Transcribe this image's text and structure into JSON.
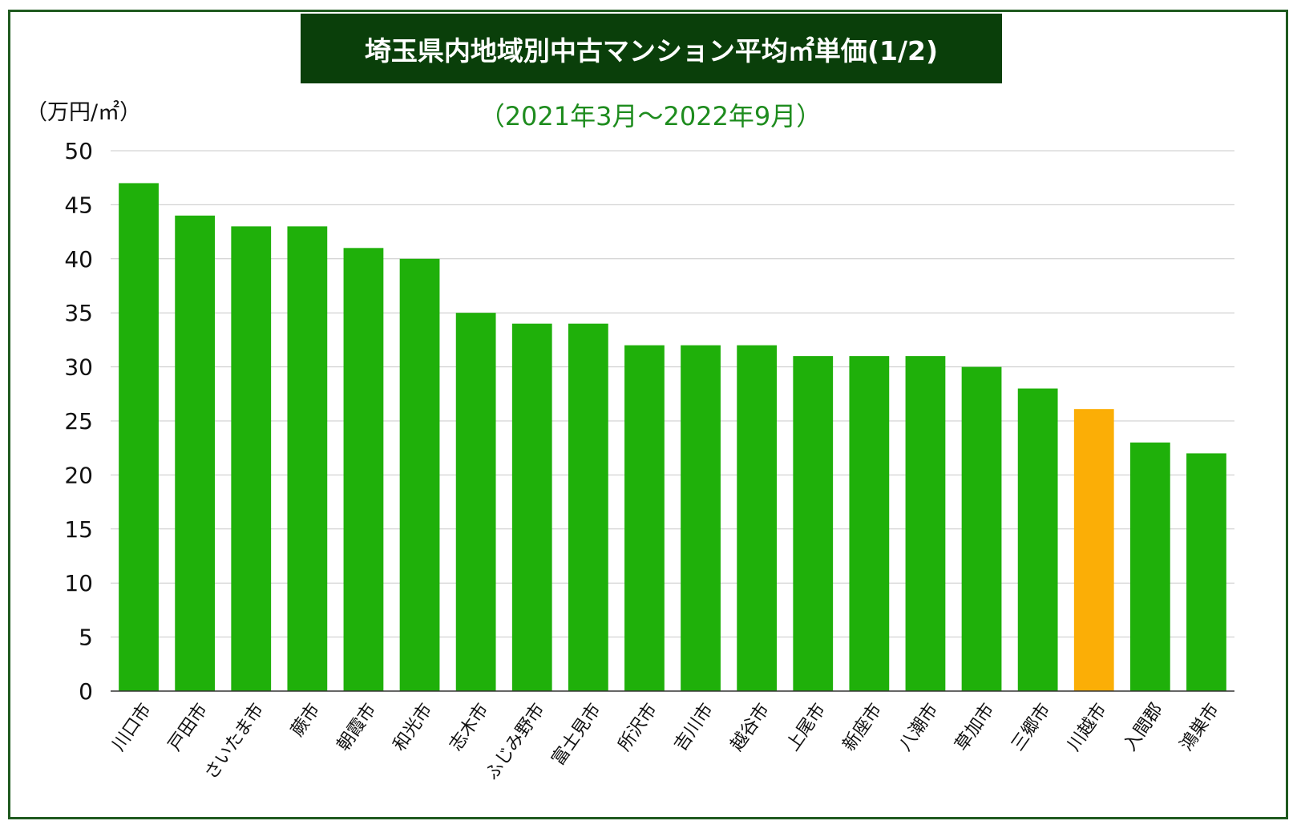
{
  "chart_data": {
    "type": "bar",
    "title": "埼玉県内地域別中古マンション平均㎡単価(1/2)",
    "subtitle": "（2021年3月～2022年9月）",
    "ylabel": "（万円/㎡）",
    "xlabel": "",
    "ylim": [
      0,
      50
    ],
    "yticks": [
      0,
      5,
      10,
      15,
      20,
      25,
      30,
      35,
      40,
      45,
      50
    ],
    "grid": true,
    "categories": [
      "川口市",
      "戸田市",
      "さいたま市",
      "蕨市",
      "朝霞市",
      "和光市",
      "志木市",
      "ふじみ野市",
      "富士見市",
      "所沢市",
      "吉川市",
      "越谷市",
      "上尾市",
      "新座市",
      "八潮市",
      "草加市",
      "三郷市",
      "川越市",
      "入間郡",
      "鴻巣市"
    ],
    "values": [
      47,
      44,
      43,
      43,
      41,
      40,
      35,
      34,
      34,
      32,
      32,
      32,
      31,
      31,
      31,
      30,
      28,
      26.1,
      23,
      22
    ],
    "highlight_category": "川越市",
    "colors": {
      "bar": "#1fb00a",
      "highlight": "#fbae06",
      "grid": "#c8c8c8",
      "title_bg": "#0a3f0a",
      "subtitle": "#1e8c1e",
      "frame": "#1f5a1f"
    }
  }
}
